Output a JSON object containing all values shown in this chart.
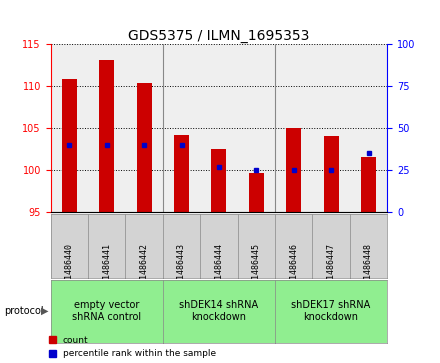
{
  "title": "GDS5375 / ILMN_1695353",
  "samples": [
    "GSM1486440",
    "GSM1486441",
    "GSM1486442",
    "GSM1486443",
    "GSM1486444",
    "GSM1486445",
    "GSM1486446",
    "GSM1486447",
    "GSM1486448"
  ],
  "counts": [
    110.8,
    113.0,
    110.3,
    104.2,
    102.5,
    99.7,
    105.0,
    104.0,
    101.5
  ],
  "percentile_ranks": [
    40,
    40,
    40,
    40,
    27,
    25,
    25,
    25,
    35
  ],
  "ylim_left": [
    95,
    115
  ],
  "ylim_right": [
    0,
    100
  ],
  "yticks_left": [
    95,
    100,
    105,
    110,
    115
  ],
  "yticks_right": [
    0,
    25,
    50,
    75,
    100
  ],
  "bar_color": "#CC0000",
  "dot_color": "#0000CC",
  "bar_bottom": 95,
  "groups": [
    {
      "label": "empty vector\nshRNA control",
      "indices": [
        0,
        1,
        2
      ],
      "color": "#90EE90"
    },
    {
      "label": "shDEK14 shRNA\nknockdown",
      "indices": [
        3,
        4,
        5
      ],
      "color": "#90EE90"
    },
    {
      "label": "shDEK17 shRNA\nknockdown",
      "indices": [
        6,
        7,
        8
      ],
      "color": "#90EE90"
    }
  ],
  "protocol_label": "protocol",
  "legend_count_label": "count",
  "legend_percentile_label": "percentile rank within the sample",
  "bar_width": 0.4,
  "title_fontsize": 10,
  "tick_fontsize": 7,
  "sample_label_fontsize": 6,
  "group_label_fontsize": 7
}
